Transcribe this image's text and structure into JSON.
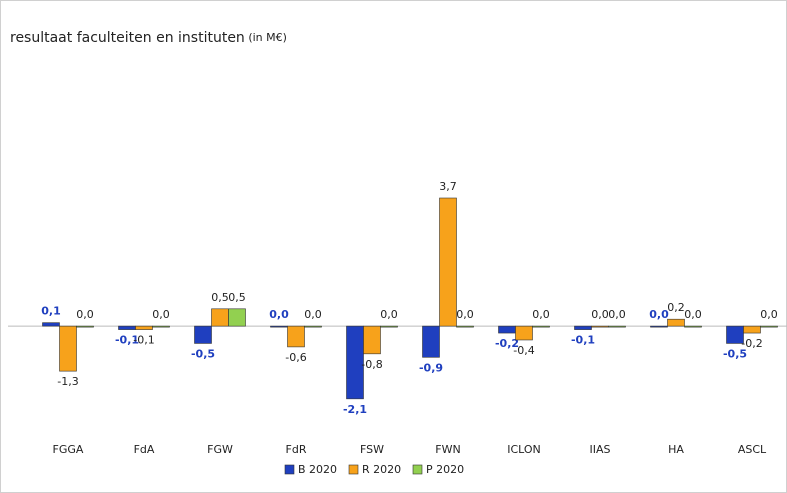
{
  "chart_data": {
    "type": "bar",
    "title": "resultaat faculteiten en instituten",
    "subtitle": "(in M€)",
    "categories": [
      "FGGA",
      "FdA",
      "FGW",
      "FdR",
      "FSW",
      "FWN",
      "ICLON",
      "IIAS",
      "HA",
      "ASCL"
    ],
    "series": [
      {
        "name": "B 2020",
        "color": "#1f3fbf",
        "values": [
          0.1,
          -0.1,
          -0.5,
          0.0,
          -2.1,
          -0.9,
          -0.2,
          -0.1,
          0.0,
          -0.5
        ],
        "value_labels": [
          "0,1",
          "-0,1",
          "-0,5",
          "0,0",
          "-2,1",
          "-0,9",
          "-0,2",
          "-0,1",
          "0,0",
          "-0,5"
        ]
      },
      {
        "name": "R 2020",
        "color": "#f7a21b",
        "values": [
          -1.3,
          -0.1,
          0.5,
          -0.6,
          -0.8,
          3.7,
          -0.4,
          0.0,
          0.2,
          -0.2
        ],
        "value_labels": [
          "-1,3",
          "-0,1",
          "0,5",
          "-0,6",
          "-0,8",
          "3,7",
          "-0,4",
          "0,0",
          "0,2",
          "-0,2"
        ]
      },
      {
        "name": "P 2020",
        "color": "#92d050",
        "values": [
          0.0,
          0.0,
          0.5,
          0.0,
          0.0,
          0.0,
          0.0,
          0.0,
          0.0,
          0.0
        ],
        "value_labels": [
          "0,0",
          "0,0",
          "0,5",
          "0,0",
          "0,0",
          "0,0",
          "0,0",
          "0,0",
          "0,0",
          "0,0"
        ]
      }
    ],
    "ylim": [
      -3,
      5
    ]
  }
}
